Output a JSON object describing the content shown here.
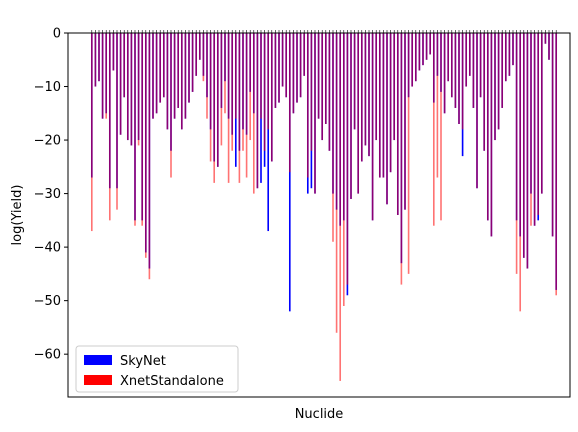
{
  "chart_data": {
    "type": "bar",
    "title": "",
    "xlabel": "Nuclide",
    "ylabel": "log(Yield)",
    "ylim": [
      -68,
      0
    ],
    "yticks": [
      0,
      -10,
      -20,
      -30,
      -40,
      -50,
      -60
    ],
    "grid": false,
    "legend_position": "bottom-left",
    "category_count": 130,
    "series": [
      {
        "name": "SkyNet",
        "color": "#0000ff",
        "values": [
          -27,
          -10,
          -9,
          -16,
          -15,
          -29,
          -7,
          -29,
          -19,
          -12,
          -20,
          -21,
          -35,
          -20,
          -35,
          -41,
          -44,
          -16,
          -15,
          -13,
          -12,
          -18,
          -22,
          -16,
          -14,
          -18,
          -16,
          -13,
          -11,
          -8,
          -5,
          -8,
          -12,
          -18,
          -24,
          -25,
          -14,
          -9,
          -16,
          -19,
          -25,
          -22,
          -18,
          -19,
          -11,
          -15,
          -29,
          -28,
          -25,
          -37,
          -24,
          -14,
          -13,
          -10,
          -12,
          -52,
          -15,
          -13,
          -12,
          -8,
          -30,
          -29,
          -30,
          -16,
          -20,
          -17,
          -22,
          -30,
          -33,
          -36,
          -35,
          -49,
          -31,
          -18,
          -30,
          -24,
          -21,
          -23,
          -35,
          -20,
          -27,
          -27,
          -32,
          -26,
          -20,
          -34,
          -43,
          -33,
          -12,
          -10,
          -9,
          -7,
          -6,
          -5,
          -4,
          -13,
          -8,
          -11,
          -15,
          -9,
          -12,
          -14,
          -17,
          -23,
          -10,
          -8,
          -14,
          -29,
          -12,
          -22,
          -35,
          -38,
          -20,
          -18,
          -14,
          -9,
          -8,
          -6,
          -35,
          -38,
          -42,
          -44,
          -30,
          -36,
          -35,
          -30,
          -2,
          -5,
          -38,
          -48
        ]
      },
      {
        "name": "XnetStandalone",
        "color": "#ff0000",
        "values": [
          -37,
          -10,
          -9,
          -16,
          -16,
          -35,
          -7,
          -33,
          -19,
          -12,
          -20,
          -21,
          -36,
          -21,
          -36,
          -42,
          -46,
          -16,
          -15,
          -13,
          -12,
          -18,
          -27,
          -16,
          -14,
          -18,
          -16,
          -13,
          -11,
          -8,
          -5,
          -9,
          -16,
          -24,
          -28,
          -25,
          -21,
          -15,
          -28,
          -22,
          -16,
          -28,
          -22,
          -27,
          -20,
          -30,
          -29,
          -16,
          -22,
          -18,
          -24,
          -14,
          -13,
          -10,
          -12,
          -26,
          -15,
          -13,
          -12,
          -8,
          -27,
          -22,
          -30,
          -16,
          -20,
          -17,
          -22,
          -39,
          -56,
          -65,
          -51,
          -47,
          -31,
          -18,
          -30,
          -24,
          -21,
          -23,
          -35,
          -20,
          -27,
          -27,
          -32,
          -26,
          -20,
          -34,
          -47,
          -33,
          -45,
          -10,
          -9,
          -7,
          -6,
          -5,
          -4,
          -36,
          -27,
          -35,
          -15,
          -9,
          -12,
          -14,
          -17,
          -18,
          -10,
          -8,
          -14,
          -29,
          -12,
          -22,
          -35,
          -38,
          -20,
          -18,
          -14,
          -9,
          -8,
          -6,
          -45,
          -52,
          -42,
          -44,
          -36,
          -36,
          -34,
          -30,
          -2,
          -5,
          -38,
          -49
        ]
      }
    ]
  }
}
